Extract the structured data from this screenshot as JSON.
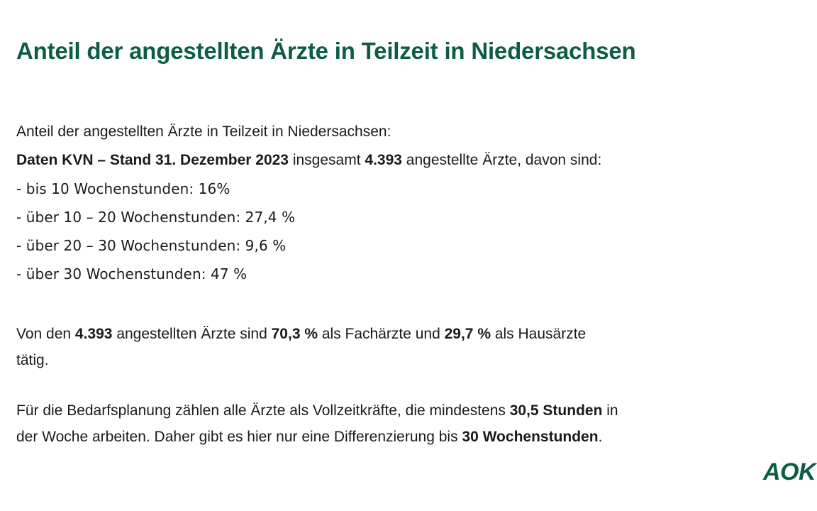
{
  "page": {
    "background": "#ffffff",
    "accent_green": "#0d5e40",
    "text_color": "#1a1a1a"
  },
  "title": "Anteil der angestellten Ärzte in Teilzeit in Niedersachsen",
  "intro": {
    "line1": "Anteil der angestellten Ärzte in Teilzeit in Niedersachsen:",
    "line2": {
      "seg1_bold": "Daten KVN – Stand 31. Dezember 2023",
      "seg2": " insgesamt ",
      "seg3_bold": "4.393",
      "seg4": " angestellte Ärzte, davon sind:"
    },
    "list": [
      "- bis 10 Wochenstunden: 16%",
      "- über 10 – 20 Wochenstunden: 27,4 %",
      "- über 20 – 30 Wochenstunden: 9,6 %",
      "- über 30 Wochenstunden: 47 %"
    ]
  },
  "para_fachaerzte": {
    "line1": {
      "seg1": "Von den ",
      "seg2_bold": "4.393",
      "seg3": " angestellten Ärzte sind ",
      "seg4_bold": "70,3 %",
      "seg5": " als Fachärzte und ",
      "seg6_bold": "29,7 %",
      "seg7": " als Hausärzte"
    },
    "line2": "tätig."
  },
  "para_bedarfsplanung": {
    "line1": {
      "seg1": "Für die Bedarfsplanung zählen alle Ärzte als Vollzeitkräfte, die mindestens ",
      "seg2_bold": "30,5 Stunden",
      "seg3": " in"
    },
    "line2": {
      "seg1": "der Woche arbeiten. Daher gibt es hier nur eine Differenzierung bis ",
      "seg2_bold": "30 Wochenstunden",
      "seg3": "."
    }
  },
  "logo": {
    "text": "AOK"
  }
}
